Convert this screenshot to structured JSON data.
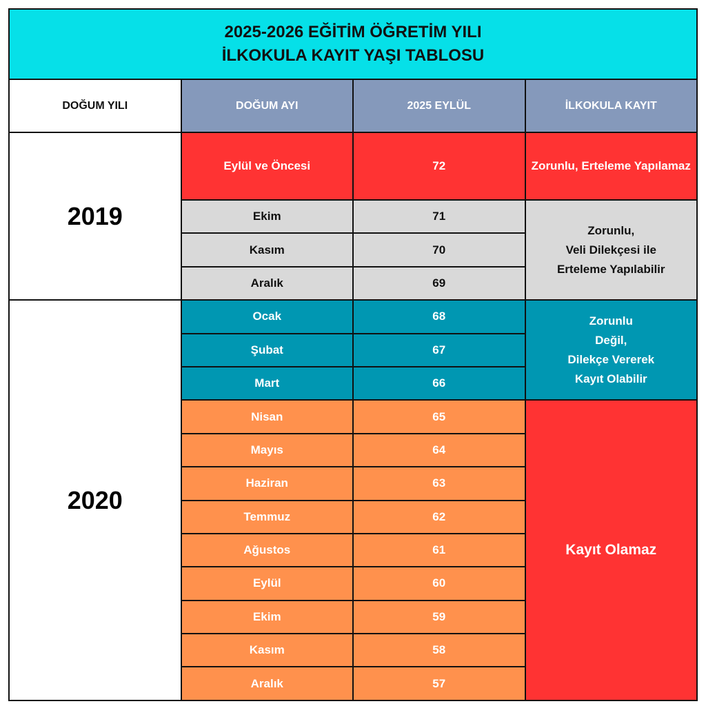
{
  "title": {
    "line1": "2025-2026 EĞİTİM ÖĞRETİM YILI",
    "line2": "İLKOKULA KAYIT YAŞI TABLOSU"
  },
  "headers": {
    "birth_year": "DOĞUM YILI",
    "birth_month": "DOĞUM AYI",
    "age_sept": "2025 EYLÜL",
    "enrollment": "İLKOKULA KAYIT"
  },
  "years": [
    "2019",
    "2020"
  ],
  "colors": {
    "title": "#06E0E8",
    "header": "#8599BB",
    "red": "#FF3333",
    "gray": "#D9D9D9",
    "teal": "#0097B2",
    "orange": "#FF914D"
  },
  "rows": [
    {
      "month": "Eylül ve Öncesi",
      "months_age": "72"
    },
    {
      "month": "Ekim",
      "months_age": "71"
    },
    {
      "month": "Kasım",
      "months_age": "70"
    },
    {
      "month": "Aralık",
      "months_age": "69"
    },
    {
      "month": "Ocak",
      "months_age": "68"
    },
    {
      "month": "Şubat",
      "months_age": "67"
    },
    {
      "month": "Mart",
      "months_age": "66"
    },
    {
      "month": "Nisan",
      "months_age": "65"
    },
    {
      "month": "Mayıs",
      "months_age": "64"
    },
    {
      "month": "Haziran",
      "months_age": "63"
    },
    {
      "month": "Temmuz",
      "months_age": "62"
    },
    {
      "month": "Ağustos",
      "months_age": "61"
    },
    {
      "month": "Eylül",
      "months_age": "60"
    },
    {
      "month": "Ekim",
      "months_age": "59"
    },
    {
      "month": "Kasım",
      "months_age": "58"
    },
    {
      "month": "Aralık",
      "months_age": "57"
    }
  ],
  "statuses": [
    {
      "lines": [
        "Zorunlu, Erteleme Yapılamaz"
      ]
    },
    {
      "lines": [
        "Zorunlu,",
        "Veli Dilekçesi ile",
        "Erteleme Yapılabilir"
      ]
    },
    {
      "lines": [
        "Zorunlu",
        "Değil,",
        "Dilekçe Vererek",
        "Kayıt Olabilir"
      ]
    },
    {
      "lines": [
        "Kayıt Olamaz"
      ]
    }
  ]
}
